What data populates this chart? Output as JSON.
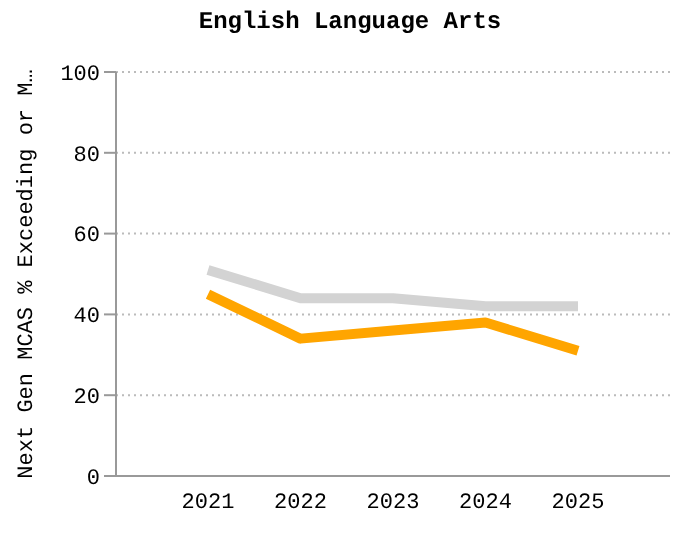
{
  "chart_data": {
    "type": "line",
    "title": "English Language Arts",
    "ylabel": "Next Gen MCAS % Exceeding or M…",
    "categories": [
      "2021",
      "2022",
      "2023",
      "2024",
      "2025"
    ],
    "series": [
      {
        "color": "#d3d3d3",
        "values": [
          51,
          44,
          44,
          42,
          42
        ]
      },
      {
        "color": "#ffa500",
        "values": [
          45,
          34,
          36,
          38,
          31
        ]
      }
    ],
    "ylim": [
      0,
      100
    ],
    "yticks": [
      0,
      20,
      40,
      60,
      80,
      100
    ],
    "grid": "y",
    "marker": "none",
    "line_style": "solid"
  }
}
